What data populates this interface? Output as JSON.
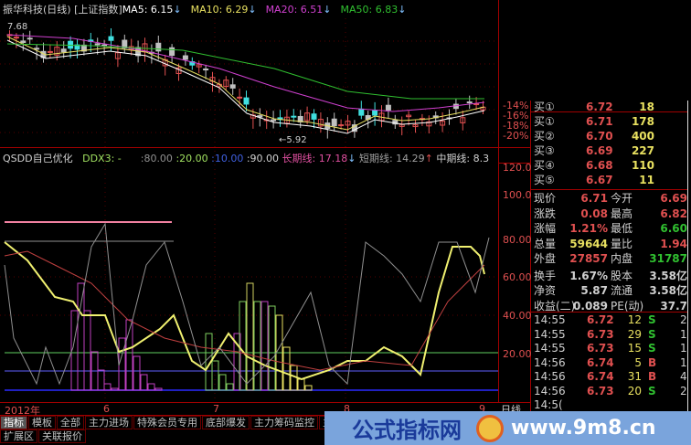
{
  "main_chart": {
    "title": "振华科技(日线)",
    "index_link": "[上证指数]",
    "ma": [
      {
        "label": "MA5: 6.15",
        "arrow": "↓",
        "color": "#ffffff"
      },
      {
        "label": "MA10: 6.29",
        "arrow": "↓",
        "color": "#e8e060"
      },
      {
        "label": "MA20: 6.51",
        "arrow": "↓",
        "color": "#d040d0"
      },
      {
        "label": "MA50: 6.83",
        "arrow": "↓",
        "color": "#30c030"
      }
    ],
    "high_marker": "7.68",
    "low_marker": "←5.92",
    "axis_labels": [
      "-14%",
      "-16%",
      "-18%",
      "-20%"
    ]
  },
  "indicator": {
    "name": "QSDD自己优化",
    "ddx": "DDX3: -",
    "levels": [
      ":80.00",
      ":20.00",
      ":10.00",
      ":90.00"
    ],
    "long_line": "长期线: 17.18",
    "long_arrow": "↓",
    "short_line": "短期线: 14.29",
    "short_arrow": "↑",
    "mid_line": "中期线: 8.3",
    "axis_labels": [
      "120.0",
      "100.0",
      "80.00",
      "60.00",
      "40.00",
      "20.00"
    ]
  },
  "date_axis": {
    "year": "2012年",
    "months": [
      "6",
      "7",
      "8",
      "9"
    ],
    "period": "日线"
  },
  "tabs": {
    "row1": [
      "指标",
      "模板",
      "全部",
      "主力进场",
      "特殊会员专用",
      "底部爆发",
      "主力筹码监控",
      "主力筹码"
    ],
    "row2": [
      "扩展区",
      "关联报价"
    ],
    "active": "指标"
  },
  "order_book": {
    "rows": [
      {
        "label": "买①",
        "price": "6.72",
        "vol": "18"
      },
      {
        "label": "买①",
        "price": "6.71",
        "vol": "178"
      },
      {
        "label": "买②",
        "price": "6.70",
        "vol": "400"
      },
      {
        "label": "买③",
        "price": "6.69",
        "vol": "227"
      },
      {
        "label": "买④",
        "price": "6.68",
        "vol": "110"
      },
      {
        "label": "买⑤",
        "price": "6.67",
        "vol": "11"
      }
    ]
  },
  "quote": {
    "rows": [
      {
        "l1": "现价",
        "v1": "6.71",
        "c1": "#e05050",
        "l2": "今开",
        "v2": "6.69",
        "c2": "#e05050"
      },
      {
        "l1": "涨跌",
        "v1": "0.08",
        "c1": "#e05050",
        "l2": "最高",
        "v2": "6.82",
        "c2": "#e05050"
      },
      {
        "l1": "涨幅",
        "v1": "1.21%",
        "c1": "#e05050",
        "l2": "最低",
        "v2": "6.60",
        "c2": "#30c030"
      },
      {
        "l1": "总量",
        "v1": "59644",
        "c1": "#e8e060",
        "l2": "量比",
        "v2": "1.94",
        "c2": "#e05050"
      },
      {
        "l1": "外盘",
        "v1": "27857",
        "c1": "#e05050",
        "l2": "内盘",
        "v2": "31787",
        "c2": "#30c030"
      },
      {
        "l1": "换手",
        "v1": "1.67%",
        "c1": "#d0d0d0",
        "l2": "股本",
        "v2": "3.58亿",
        "c2": "#d0d0d0"
      },
      {
        "l1": "净资",
        "v1": "5.87",
        "c1": "#d0d0d0",
        "l2": "流通",
        "v2": "3.58亿",
        "c2": "#d0d0d0"
      },
      {
        "l1": "收益(二)",
        "v1": "0.089",
        "c1": "#d0d0d0",
        "l2": "PE(动)",
        "v2": "37.7",
        "c2": "#d0d0d0"
      }
    ]
  },
  "ticks": [
    {
      "time": "14:55",
      "price": "6.72",
      "vol": "12",
      "side": "S",
      "n": "2"
    },
    {
      "time": "14:55",
      "price": "6.73",
      "vol": "29",
      "side": "S",
      "n": "1"
    },
    {
      "time": "14:55",
      "price": "6.73",
      "vol": "15",
      "side": "S",
      "n": "1"
    },
    {
      "time": "14:56",
      "price": "6.74",
      "vol": "5",
      "side": "B",
      "n": "1"
    },
    {
      "time": "14:56",
      "price": "6.74",
      "vol": "31",
      "side": "B",
      "n": "4"
    },
    {
      "time": "14:56",
      "price": "6.73",
      "vol": "20",
      "side": "S",
      "n": "2"
    },
    {
      "time": "14:5(",
      "price": "",
      "vol": "",
      "side": "",
      "n": ""
    }
  ],
  "watermark": {
    "site_name": "公式指标网",
    "url": "www.9m8.cn"
  }
}
